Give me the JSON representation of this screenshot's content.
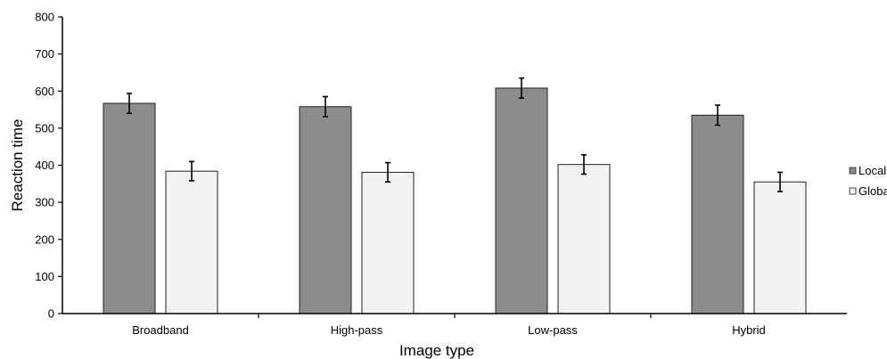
{
  "chart_data": {
    "type": "bar",
    "title": "",
    "xlabel": "Image type",
    "ylabel": "Reaction time",
    "ylim": [
      0,
      800
    ],
    "yticks": [
      0,
      100,
      200,
      300,
      400,
      500,
      600,
      700,
      800
    ],
    "grid": false,
    "legend_position": "right",
    "categories": [
      "Broadband",
      "High-pass",
      "Low-pass",
      "Hybrid"
    ],
    "series": [
      {
        "name": "Local",
        "color": "#8c8c8c",
        "values": [
          567,
          558,
          608,
          535
        ],
        "errors": [
          27,
          27,
          27,
          27
        ]
      },
      {
        "name": "Global",
        "color": "#f2f2f2",
        "values": [
          384,
          381,
          402,
          355
        ],
        "errors": [
          26,
          26,
          26,
          26
        ]
      }
    ]
  }
}
